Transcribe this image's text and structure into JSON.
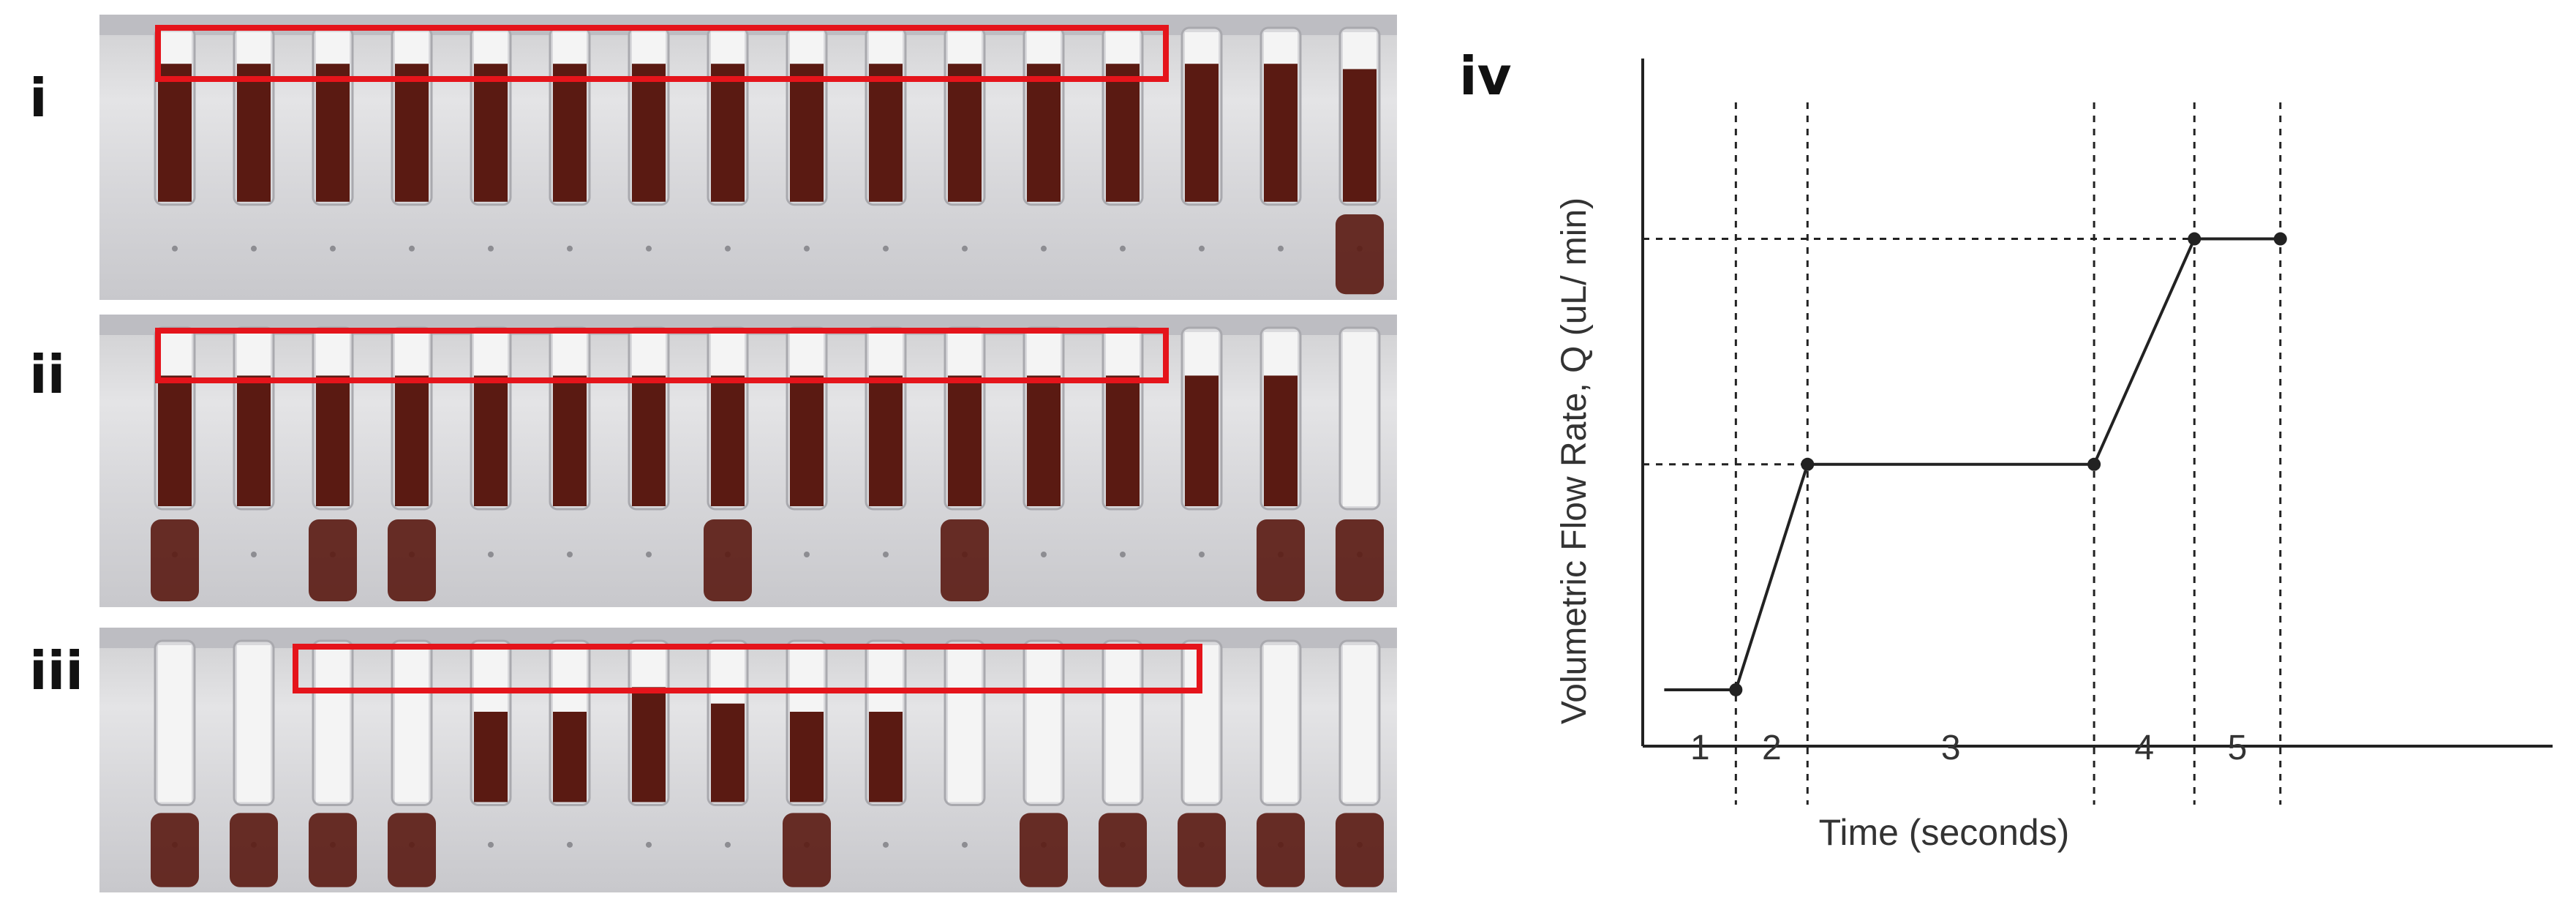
{
  "panels": {
    "i": "i",
    "ii": "ii",
    "iii": "iii",
    "iv": "iv"
  },
  "chart_data": {
    "type": "line",
    "title": "",
    "xlabel": "Time (seconds)",
    "ylabel": "Volumetric Flow Rate, Q (uL/ min)",
    "phase_labels": [
      "1",
      "2",
      "3",
      "4",
      "5"
    ],
    "x": [
      0,
      0.5,
      1.0,
      3.0,
      3.7,
      4.3
    ],
    "y": [
      0,
      0,
      1,
      1,
      2,
      2
    ],
    "xlim": [
      -0.15,
      6.2
    ],
    "ylim": [
      -0.25,
      2.8
    ],
    "grid": false,
    "colors": {
      "line": "#222222",
      "guide": "#222222"
    }
  },
  "photos": {
    "channel_color_filled": "#5a1a12",
    "channel_color_empty": "#f4f4f4",
    "highlight_box_color": "#e5141b"
  }
}
